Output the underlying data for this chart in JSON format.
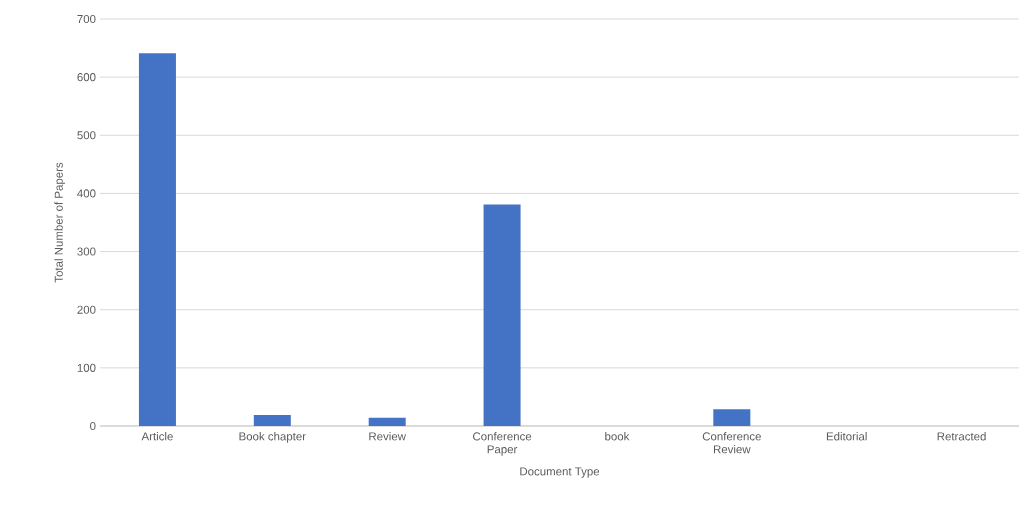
{
  "chart_data": {
    "type": "bar",
    "xlabel": "Document Type",
    "ylabel": "Total Number of Papers",
    "categories": [
      "Article",
      "Book chapter",
      "Review",
      "Conference Paper",
      "book",
      "Conference Review",
      "Editorial",
      "Retracted"
    ],
    "values": [
      641,
      19,
      14,
      381,
      0,
      29,
      0,
      0
    ],
    "color": "#4472c4",
    "ylim": [
      0,
      700
    ],
    "yticks": [
      0,
      100,
      200,
      300,
      400,
      500,
      600,
      700
    ],
    "grid": "y"
  }
}
